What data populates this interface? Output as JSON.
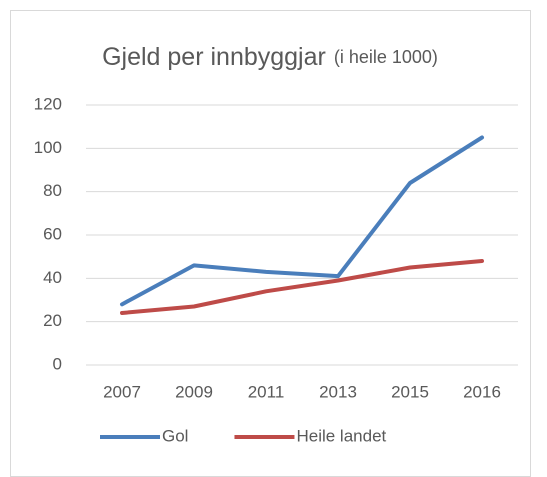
{
  "chart_data": {
    "type": "line",
    "title": "Gjeld per innbyggjar",
    "subtitle": "(i heile 1000)",
    "categories": [
      "2007",
      "2009",
      "2011",
      "2013",
      "2015",
      "2016"
    ],
    "series": [
      {
        "name": "Gol",
        "color": "#4a7ebb",
        "values": [
          28,
          46,
          43,
          41,
          84,
          105
        ]
      },
      {
        "name": "Heile landet",
        "color": "#be4b48",
        "values": [
          24,
          27,
          34,
          39,
          45,
          48
        ]
      }
    ],
    "ylim": [
      0,
      120
    ],
    "yticks": [
      0,
      20,
      40,
      60,
      80,
      100,
      120
    ],
    "grid": true,
    "legend": "bottom-left"
  }
}
